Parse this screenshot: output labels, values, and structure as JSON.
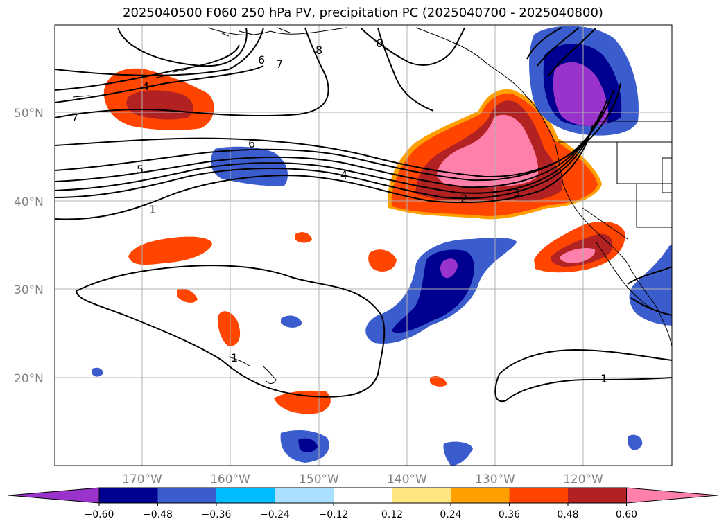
{
  "title": "2025040500 F060 250 hPa PV, precipitation PC (2025040700 - 2025040800)",
  "lat_labels": [
    "50°N",
    "40°N",
    "30°N",
    "20°N"
  ],
  "lon_labels": [
    "170°W",
    "160°W",
    "150°W",
    "140°W",
    "130°W",
    "120°W"
  ],
  "contour_labels": [
    "4",
    "7",
    "6",
    "5",
    "4",
    "1",
    "6",
    "7",
    "8",
    "6",
    "2",
    "3",
    "1",
    "1"
  ],
  "colorbar": {
    "ticks": [
      "−0.60",
      "−0.48",
      "−0.36",
      "−0.24",
      "−0.12",
      "0.12",
      "0.24",
      "0.36",
      "0.48",
      "0.60"
    ],
    "colors": [
      "#9933cc",
      "#000090",
      "#3a5ccc",
      "#00bbff",
      "#aae0ff",
      "#ffffff",
      "#ffe680",
      "#ffa000",
      "#ff4500",
      "#b22222",
      "#ff80aa"
    ]
  },
  "colors": {
    "pos1": "#ffe680",
    "pos2": "#ffa000",
    "pos3": "#ff4500",
    "pos4": "#b22222",
    "pos5": "#ff80aa",
    "neg1": "#aae0ff",
    "neg2": "#00bbff",
    "neg3": "#3a5ccc",
    "neg4": "#000090",
    "neg5": "#9933cc"
  }
}
